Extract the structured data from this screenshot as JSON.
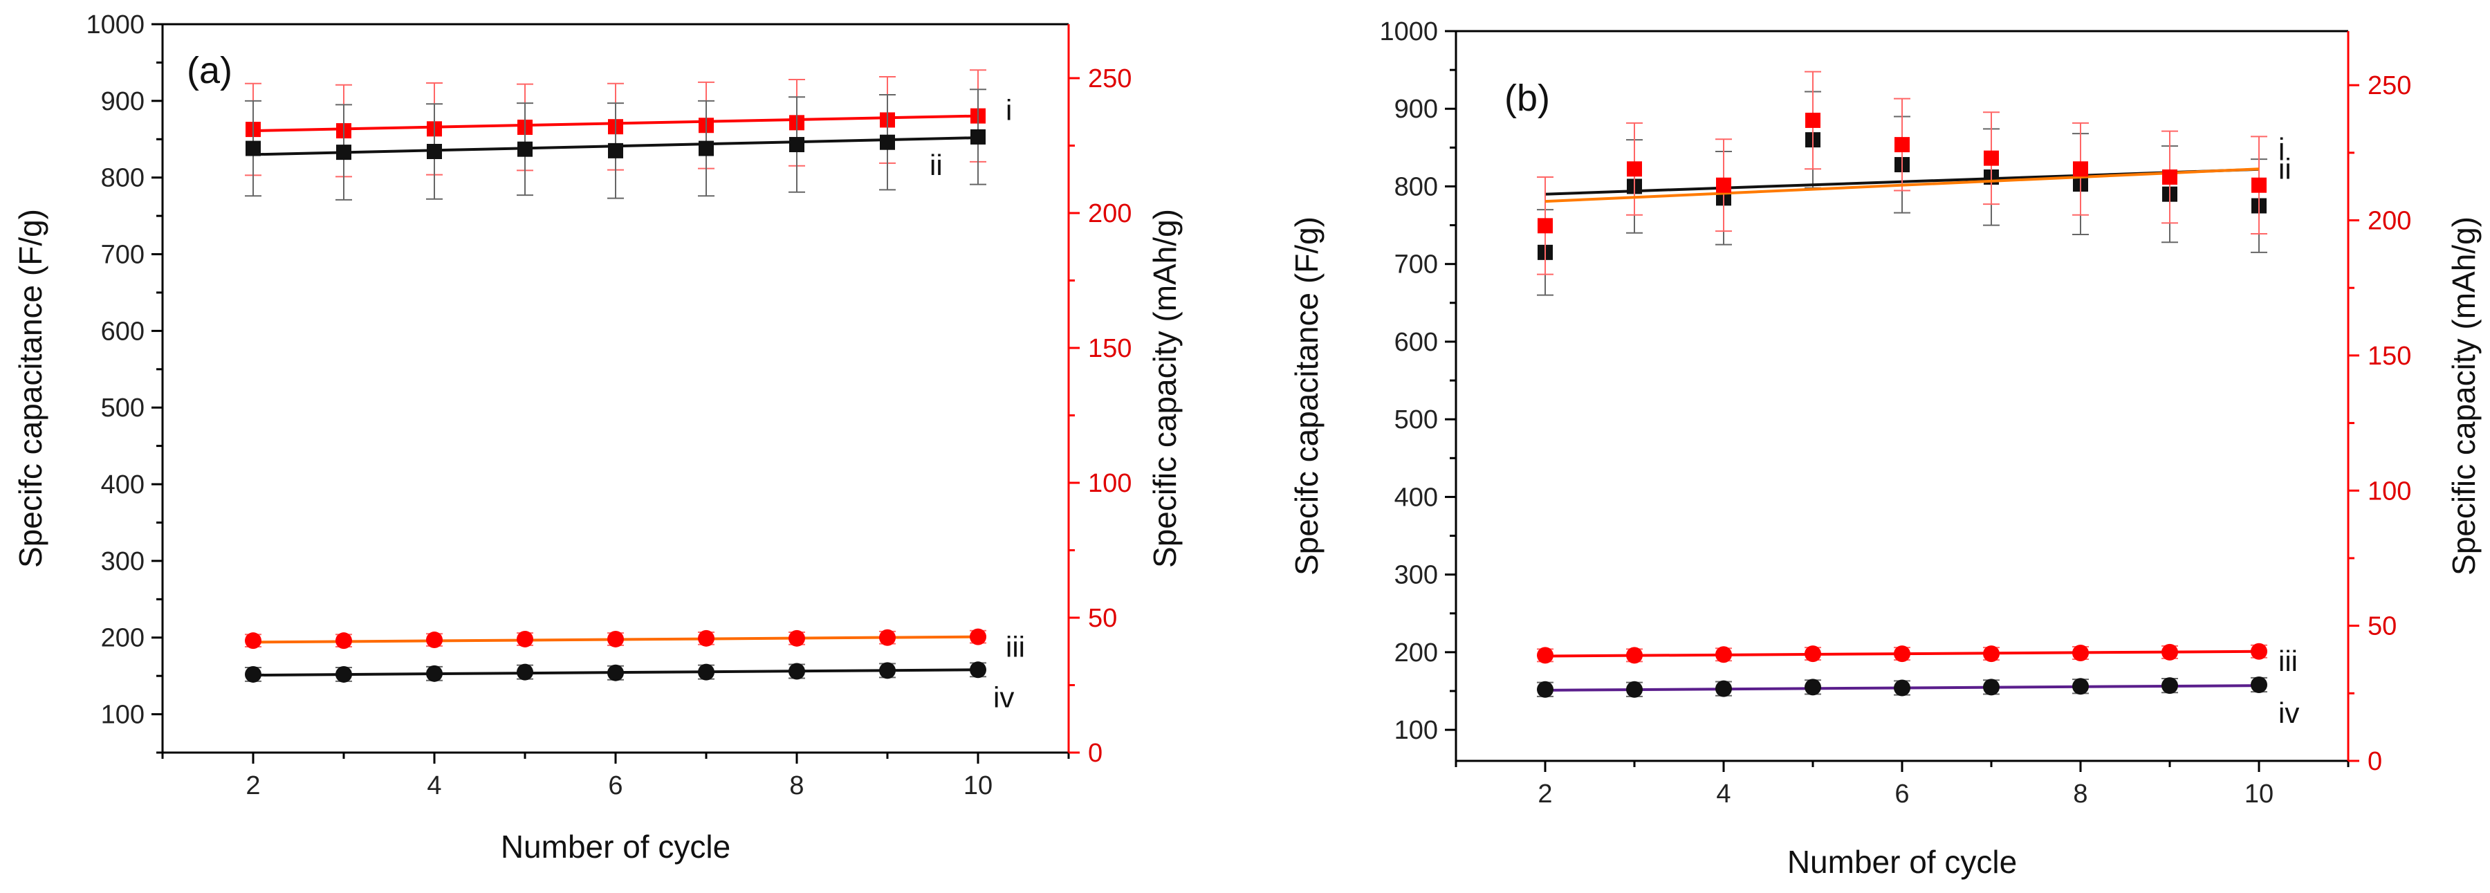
{
  "chart_data": [
    {
      "type": "scatter",
      "panel_label": "(a)",
      "xlabel": "Number of cycle",
      "ylabel": "Specifc capacitance (F/g)",
      "y2label": "Specific capacity (mAh/g)",
      "xlim": [
        1,
        11
      ],
      "ylim": [
        50,
        1000
      ],
      "y2lim": [
        0,
        270
      ],
      "x_ticks": [
        2,
        4,
        6,
        8,
        10
      ],
      "y_ticks": [
        100,
        200,
        300,
        400,
        500,
        600,
        700,
        800,
        900,
        1000
      ],
      "y2_ticks": [
        0,
        50,
        100,
        150,
        200,
        250
      ],
      "colors": {
        "left_axis": "#000000",
        "right_axis": "#ff0000"
      },
      "series": [
        {
          "name": "i",
          "label": "i",
          "axis": "right",
          "marker": "square",
          "marker_color": "#ff0000",
          "fit_color": "#ff0000",
          "x": [
            2,
            3,
            4,
            5,
            6,
            7,
            8,
            9,
            10
          ],
          "values": [
            231.0,
            230.5,
            231.2,
            231.8,
            232.0,
            232.5,
            233.5,
            234.5,
            236.0
          ],
          "errors": [
            17,
            17,
            17,
            16,
            16,
            16,
            16,
            16,
            17
          ],
          "fit": [
            230.5,
            236.0
          ]
        },
        {
          "name": "ii",
          "label": "ii",
          "axis": "left",
          "marker": "square",
          "marker_color": "#111111",
          "fit_color": "#111111",
          "x": [
            2,
            3,
            4,
            5,
            6,
            7,
            8,
            9,
            10
          ],
          "values": [
            838,
            833,
            834,
            837,
            835,
            838,
            843,
            846,
            853
          ],
          "errors": [
            62,
            62,
            62,
            60,
            62,
            62,
            62,
            62,
            62
          ],
          "fit": [
            830,
            852
          ]
        },
        {
          "name": "iii",
          "label": "iii",
          "axis": "left",
          "marker": "circle",
          "marker_color": "#ff0000",
          "fit_color": "#ff6a00",
          "x": [
            2,
            3,
            4,
            5,
            6,
            7,
            8,
            9,
            10
          ],
          "values": [
            196,
            196,
            197,
            198,
            198,
            199,
            199,
            200,
            201
          ],
          "errors": [
            8,
            8,
            8,
            8,
            8,
            8,
            8,
            8,
            8
          ],
          "fit": [
            194,
            201
          ]
        },
        {
          "name": "iv",
          "label": "iv",
          "axis": "left",
          "marker": "circle",
          "marker_color": "#111111",
          "fit_color": "#111111",
          "x": [
            2,
            3,
            4,
            5,
            6,
            7,
            8,
            9,
            10
          ],
          "values": [
            152,
            152,
            153,
            155,
            154,
            155,
            156,
            157,
            158
          ],
          "errors": [
            9,
            9,
            9,
            9,
            9,
            9,
            9,
            9,
            9
          ],
          "fit": [
            151,
            158
          ]
        }
      ]
    },
    {
      "type": "scatter",
      "panel_label": "(b)",
      "xlabel": "Number of cycle",
      "ylabel": "Specifc capacitance (F/g)",
      "y2label": "Specific capacity (mAh/g)",
      "xlim": [
        1,
        11
      ],
      "ylim": [
        60,
        1000
      ],
      "y2lim": [
        0,
        270
      ],
      "x_ticks": [
        2,
        4,
        6,
        8,
        10
      ],
      "y_ticks": [
        100,
        200,
        300,
        400,
        500,
        600,
        700,
        800,
        900,
        1000
      ],
      "y2_ticks": [
        0,
        50,
        100,
        150,
        200,
        250
      ],
      "colors": {
        "left_axis": "#000000",
        "right_axis": "#ff0000"
      },
      "series": [
        {
          "name": "i",
          "label": "i",
          "axis": "left",
          "marker": "square",
          "marker_color": "#111111",
          "fit_color": "#111111",
          "x": [
            2,
            3,
            4,
            5,
            6,
            7,
            8,
            9,
            10
          ],
          "values": [
            715,
            800,
            785,
            860,
            828,
            812,
            803,
            790,
            775
          ],
          "errors": [
            55,
            60,
            60,
            62,
            62,
            62,
            65,
            62,
            60
          ],
          "fit": [
            790,
            822
          ]
        },
        {
          "name": "ii",
          "label": "ii",
          "axis": "right",
          "marker": "square",
          "marker_color": "#ff0000",
          "fit_color": "#ff7a00",
          "x": [
            2,
            3,
            4,
            5,
            6,
            7,
            8,
            9,
            10
          ],
          "values": [
            198,
            219,
            213,
            237,
            228,
            223,
            219,
            216,
            213
          ],
          "errors": [
            18,
            17,
            17,
            18,
            17,
            17,
            17,
            17,
            18
          ],
          "fit": [
            207,
            219
          ]
        },
        {
          "name": "iii",
          "label": "iii",
          "axis": "left",
          "marker": "circle",
          "marker_color": "#ff0000",
          "fit_color": "#ff0000",
          "x": [
            2,
            3,
            4,
            5,
            6,
            7,
            8,
            9,
            10
          ],
          "values": [
            196,
            196,
            197,
            198,
            198,
            198,
            199,
            200,
            201
          ],
          "errors": [
            8,
            8,
            8,
            8,
            8,
            8,
            8,
            8,
            8
          ],
          "fit": [
            195,
            201
          ]
        },
        {
          "name": "iv",
          "label": "iv",
          "axis": "left",
          "marker": "circle",
          "marker_color": "#111111",
          "fit_color": "#5a1e8c",
          "x": [
            2,
            3,
            4,
            5,
            6,
            7,
            8,
            9,
            10
          ],
          "values": [
            152,
            152,
            153,
            155,
            154,
            155,
            156,
            157,
            158
          ],
          "errors": [
            9,
            9,
            9,
            9,
            9,
            9,
            9,
            9,
            9
          ],
          "fit": [
            151,
            157
          ]
        }
      ]
    }
  ]
}
